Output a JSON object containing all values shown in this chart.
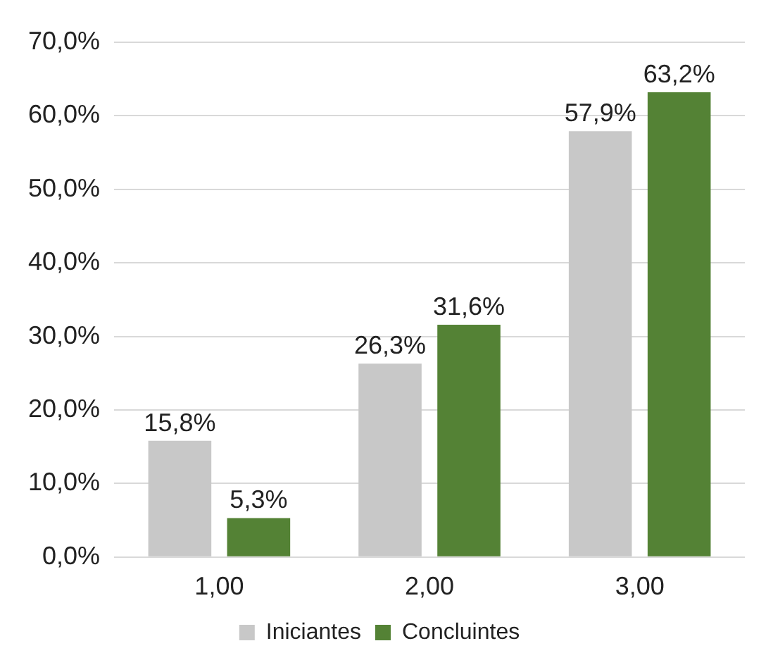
{
  "chart_data": {
    "type": "bar",
    "categories": [
      "1,00",
      "2,00",
      "3,00"
    ],
    "series": [
      {
        "name": "Iniciantes",
        "color": "#c8c8c8",
        "values": [
          15.8,
          26.3,
          57.9
        ],
        "value_labels": [
          "15,8%",
          "26,3%",
          "57,9%"
        ]
      },
      {
        "name": "Concluintes",
        "color": "#548235",
        "values": [
          5.3,
          31.6,
          63.2
        ],
        "value_labels": [
          "5,3%",
          "31,6%",
          "63,2%"
        ]
      }
    ],
    "ylim": [
      0,
      70
    ],
    "yticks": [
      {
        "value": 0,
        "label": "0,0%"
      },
      {
        "value": 10,
        "label": "10,0%"
      },
      {
        "value": 20,
        "label": "20,0%"
      },
      {
        "value": 30,
        "label": "30,0%"
      },
      {
        "value": 40,
        "label": "40,0%"
      },
      {
        "value": 50,
        "label": "50,0%"
      },
      {
        "value": 60,
        "label": "60,0%"
      },
      {
        "value": 70,
        "label": "70,0%"
      }
    ],
    "grid": "y",
    "legend": "bottom"
  }
}
